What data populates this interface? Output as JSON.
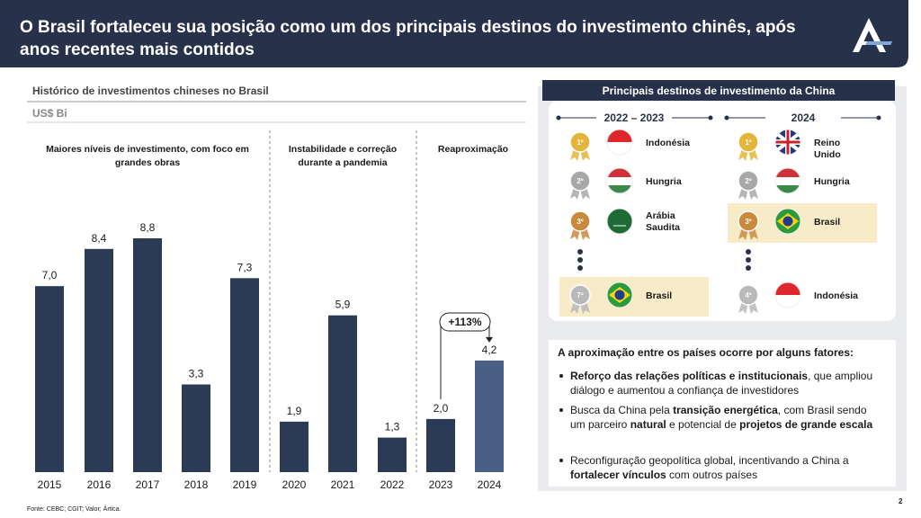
{
  "header": {
    "title": "O Brasil fortaleceu sua posição como um dos principais destinos do investimento chinês, após anos recentes mais contidos"
  },
  "chart_data": {
    "type": "bar",
    "title": "Histórico de investimentos chineses no Brasil",
    "subtitle": "US$ Bi",
    "categories": [
      "2015",
      "2016",
      "2017",
      "2018",
      "2019",
      "2020",
      "2021",
      "2022",
      "2023",
      "2024"
    ],
    "values": [
      7.0,
      8.4,
      8.8,
      3.3,
      7.3,
      1.9,
      5.9,
      1.3,
      2.0,
      4.2
    ],
    "value_labels": [
      "7,0",
      "8,4",
      "8,8",
      "3,3",
      "7,3",
      "1,9",
      "5,9",
      "1,3",
      "2,0",
      "4,2"
    ],
    "colors": [
      "#2b3a55",
      "#2b3a55",
      "#2b3a55",
      "#2b3a55",
      "#2b3a55",
      "#2b3a55",
      "#2b3a55",
      "#2b3a55",
      "#2b3a55",
      "#4a5f85"
    ],
    "annotations": [
      "Maiores níveis de investimento, com foco em grandes obras",
      "Instabilidade e correção durante a pandemia",
      "Reaproximação",
      "+113%"
    ]
  },
  "panel": {
    "title": "Principais destinos de investimento da China",
    "columns": [
      {
        "header": "2022 – 2023",
        "rows": [
          {
            "rank": "1º",
            "country": "Indonésia",
            "medal": "#e3b53a"
          },
          {
            "rank": "2º",
            "country": "Hungria",
            "medal": "#a8a8a8"
          },
          {
            "rank": "3º",
            "country": "Arábia Saudita",
            "medal": "#c98a3c"
          },
          {
            "rank": "7º",
            "country": "Brasil",
            "medal": "#b9b9b9",
            "highlight": true
          }
        ]
      },
      {
        "header": "2024",
        "rows": [
          {
            "rank": "1º",
            "country": "Reino Unido",
            "medal": "#e3b53a"
          },
          {
            "rank": "2º",
            "country": "Hungria",
            "medal": "#a8a8a8"
          },
          {
            "rank": "3º",
            "country": "Brasil",
            "medal": "#c98a3c",
            "highlight": true
          },
          {
            "rank": "4º",
            "country": "Indonésia",
            "medal": "#b9b9b9"
          }
        ]
      }
    ],
    "factors_title": "A aproximação entre os países ocorre por alguns fatores:",
    "factors": [
      [
        {
          "text": "Reforço das relações políticas e institucionais",
          "bold": true
        },
        {
          "text": ", que ampliou diálogo e aumentou a confiança de investidores",
          "bold": false
        }
      ],
      [
        {
          "text": "Busca da China pela ",
          "bold": false
        },
        {
          "text": "transição energética",
          "bold": true
        },
        {
          "text": ", com Brasil sendo um parceiro ",
          "bold": false
        },
        {
          "text": "natural",
          "bold": true
        },
        {
          "text": " e potencial de ",
          "bold": false
        },
        {
          "text": "projetos de grande escala",
          "bold": true
        }
      ],
      [
        {
          "text": "Reconfiguração geopolítica global, incentivando a China a ",
          "bold": false
        },
        {
          "text": "fortalecer vínculos",
          "bold": true
        },
        {
          "text": " com outros países",
          "bold": false
        }
      ]
    ]
  },
  "footer": {
    "source": "Fonte: CEBC; CGIT; Valor; Ártica.",
    "page": "2"
  }
}
